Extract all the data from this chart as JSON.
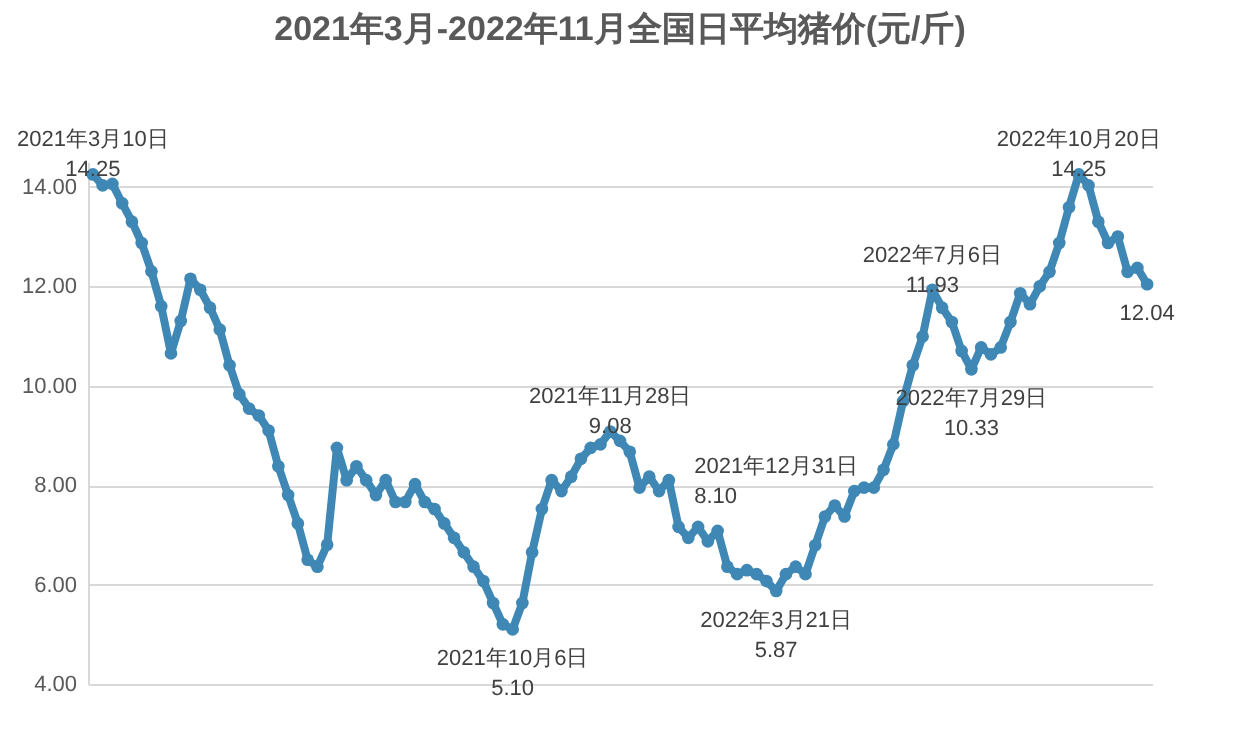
{
  "chart_data": {
    "type": "line",
    "title": "2021年3月-2022年11月全国日平均猪价(元/斤)",
    "marker": "circle",
    "grid": "y",
    "tick_labels": "y",
    "ylim": [
      4,
      14.5
    ],
    "yticks": [
      {
        "value": 4,
        "label": "4.00"
      },
      {
        "value": 6,
        "label": "6.00"
      },
      {
        "value": 8,
        "label": "8.00"
      },
      {
        "value": 10,
        "label": "10.00"
      },
      {
        "value": 12,
        "label": "12.00"
      },
      {
        "value": 14,
        "label": "14.00"
      }
    ],
    "categories": [
      null,
      null,
      null,
      null,
      null,
      null,
      null,
      null,
      null,
      null,
      null,
      null,
      null,
      null,
      null,
      null,
      null,
      null,
      null,
      null,
      null,
      null,
      null,
      null,
      null,
      null,
      null,
      null,
      null,
      null,
      null,
      null,
      null,
      null,
      null,
      null,
      null,
      null,
      null,
      null,
      null,
      null,
      null,
      null,
      null,
      null,
      null,
      null,
      null,
      null,
      null,
      null,
      null,
      null,
      null,
      null,
      null,
      null,
      null,
      null,
      null,
      null,
      null,
      null,
      null,
      null,
      null,
      null,
      null,
      null,
      null,
      null,
      null,
      null,
      null,
      null,
      null,
      null,
      null,
      null,
      null,
      null,
      null,
      null,
      null,
      null,
      null,
      null,
      null,
      null,
      null,
      null,
      null,
      null,
      null,
      null,
      null,
      null,
      null,
      null,
      null,
      null,
      null,
      null,
      null,
      null,
      null,
      null,
      null
    ],
    "series": [
      {
        "color": "#3f88b5",
        "values": [
          14.25,
          14.03,
          14.06,
          13.67,
          13.3,
          12.87,
          12.3,
          11.6,
          10.65,
          11.3,
          12.15,
          11.93,
          11.57,
          11.13,
          10.41,
          9.83,
          9.54,
          9.4,
          9.1,
          8.38,
          7.8,
          7.23,
          6.5,
          6.36,
          6.8,
          8.75,
          8.1,
          8.38,
          8.1,
          7.8,
          8.1,
          7.66,
          7.66,
          8.02,
          7.66,
          7.52,
          7.23,
          6.94,
          6.65,
          6.36,
          6.07,
          5.63,
          5.2,
          5.1,
          5.63,
          6.65,
          7.52,
          8.1,
          7.88,
          8.17,
          8.53,
          8.75,
          8.82,
          9.08,
          8.89,
          8.67,
          7.95,
          8.17,
          7.88,
          8.1,
          7.16,
          6.94,
          7.16,
          6.87,
          7.08,
          6.36,
          6.21,
          6.29,
          6.21,
          6.07,
          5.87,
          6.21,
          6.36,
          6.21,
          6.79,
          7.37,
          7.59,
          7.37,
          7.88,
          7.95,
          7.95,
          8.31,
          8.82,
          9.69,
          10.41,
          10.99,
          11.93,
          11.57,
          11.28,
          10.7,
          10.33,
          10.77,
          10.63,
          10.77,
          11.28,
          11.86,
          11.64,
          12.0,
          12.29,
          12.87,
          13.59,
          14.25,
          14.03,
          13.3,
          12.87,
          13.0,
          12.29,
          12.37,
          12.04
        ]
      }
    ],
    "annotations": [
      {
        "text": "2021年3月10日\n14.25",
        "y": 14.25
      },
      {
        "text": "2021年10月6日\n5.10",
        "y": 5.1
      },
      {
        "text": "2021年11月28日\n9.08",
        "y": 9.08
      },
      "2021年12月31日\n8.10",
      {
        "text": "2022年3月21日\n5.87",
        "y": 5.87
      },
      {
        "text": "2022年7月6日\n11.93",
        "y": 11.93
      },
      {
        "text": "2022年7月29日\n10.33",
        "y": 10.33
      },
      {
        "text": "2022年10月20日\n14.25",
        "y": 14.25
      },
      {
        "text": "12.04",
        "y": 12.04
      }
    ]
  }
}
